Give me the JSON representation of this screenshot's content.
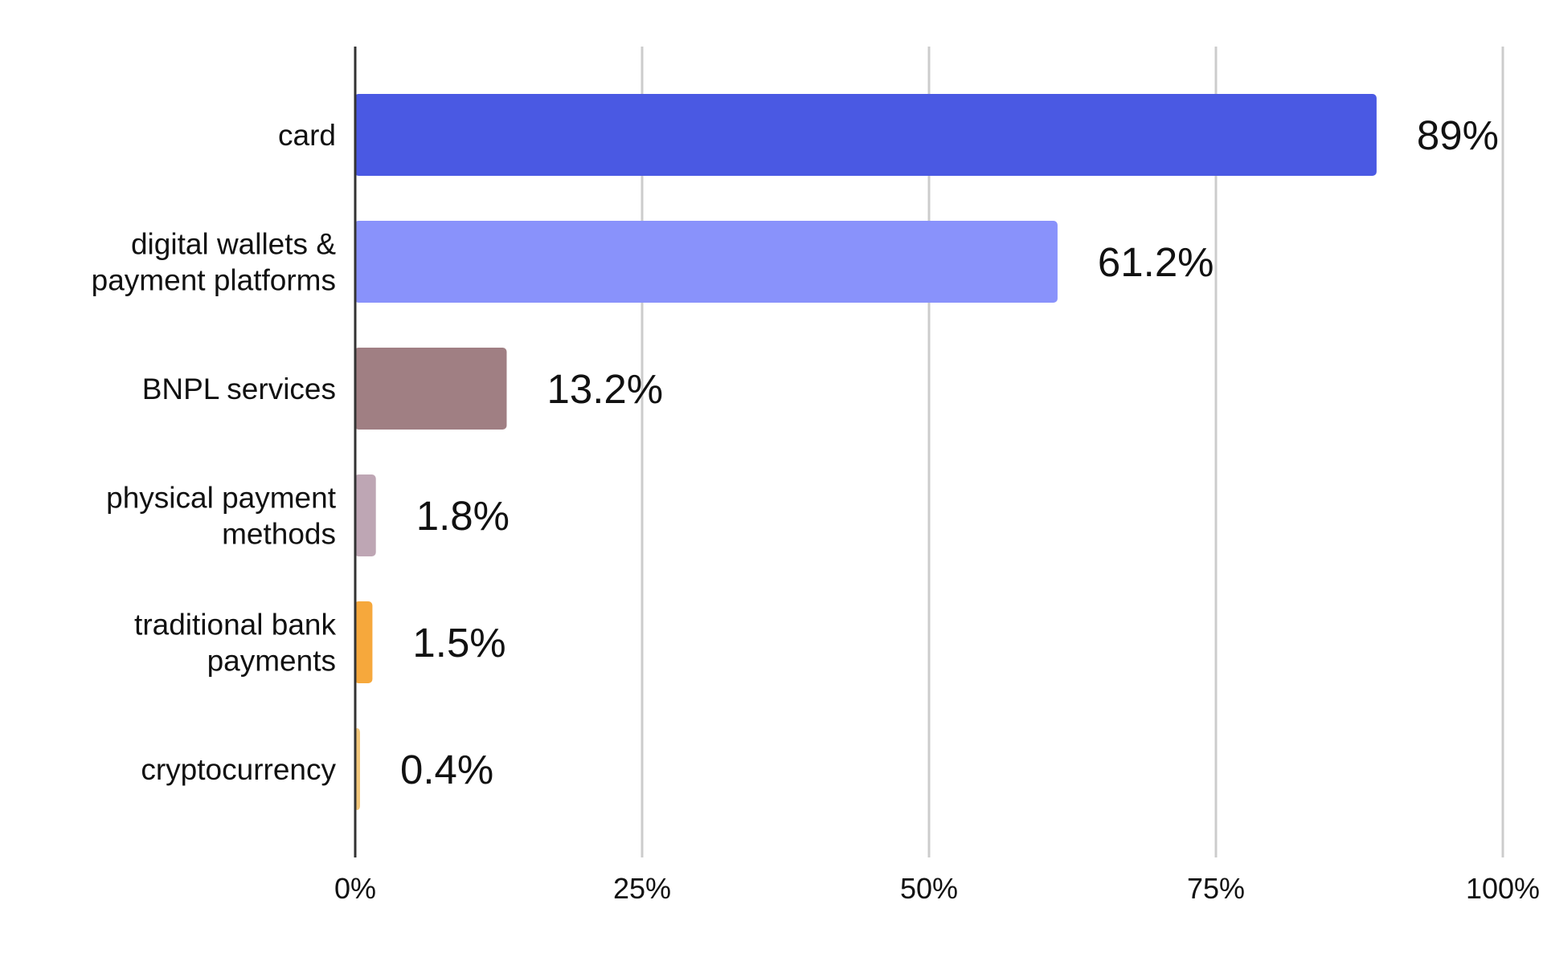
{
  "chart_data": {
    "type": "bar",
    "orientation": "horizontal",
    "title": "",
    "xlabel": "",
    "ylabel": "",
    "categories": [
      [
        "card"
      ],
      [
        "digital wallets &",
        "payment platforms"
      ],
      [
        "BNPL services"
      ],
      [
        "physical payment",
        "methods"
      ],
      [
        "traditional bank",
        "payments"
      ],
      [
        "cryptocurrency"
      ]
    ],
    "values": [
      89,
      61.2,
      13.2,
      1.8,
      1.5,
      0.4
    ],
    "value_labels": [
      "89%",
      "61.2%",
      "13.2%",
      "1.8%",
      "1.5%",
      "0.4%"
    ],
    "colors": [
      "#4a59e3",
      "#8992fb",
      "#a07f83",
      "#bea6b4",
      "#f6a83c",
      "#f2c67a"
    ],
    "xlim": [
      0,
      100
    ],
    "x_ticks": [
      0,
      25,
      50,
      75,
      100
    ],
    "x_tick_labels": [
      "0%",
      "25%",
      "50%",
      "75%",
      "100%"
    ],
    "grid": true,
    "legend": "none"
  }
}
